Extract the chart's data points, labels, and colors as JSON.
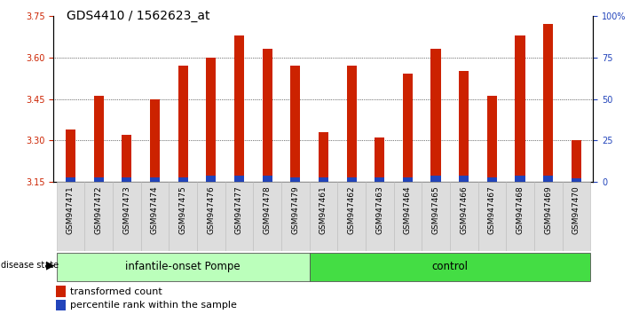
{
  "title": "GDS4410 / 1562623_at",
  "samples": [
    "GSM947471",
    "GSM947472",
    "GSM947473",
    "GSM947474",
    "GSM947475",
    "GSM947476",
    "GSM947477",
    "GSM947478",
    "GSM947479",
    "GSM947461",
    "GSM947462",
    "GSM947463",
    "GSM947464",
    "GSM947465",
    "GSM947466",
    "GSM947467",
    "GSM947468",
    "GSM947469",
    "GSM947470"
  ],
  "red_values": [
    3.34,
    3.46,
    3.32,
    3.45,
    3.57,
    3.6,
    3.68,
    3.63,
    3.57,
    3.33,
    3.57,
    3.31,
    3.54,
    3.63,
    3.55,
    3.46,
    3.68,
    3.72,
    3.3
  ],
  "blue_heights": [
    0.018,
    0.018,
    0.018,
    0.018,
    0.018,
    0.025,
    0.025,
    0.025,
    0.018,
    0.018,
    0.018,
    0.018,
    0.018,
    0.022,
    0.022,
    0.018,
    0.022,
    0.025,
    0.015
  ],
  "groups": [
    {
      "label": "infantile-onset Pompe",
      "start": 0,
      "end": 9,
      "color": "#AAFFAA"
    },
    {
      "label": "control",
      "start": 9,
      "end": 19,
      "color": "#44DD44"
    }
  ],
  "ylim_left": [
    3.15,
    3.75
  ],
  "ylim_right": [
    0,
    100
  ],
  "yticks_left": [
    3.15,
    3.3,
    3.45,
    3.6,
    3.75
  ],
  "yticks_right": [
    0,
    25,
    50,
    75,
    100
  ],
  "bar_color_red": "#CC2200",
  "bar_color_blue": "#2244BB",
  "bar_bottom": 3.15,
  "title_fontsize": 10,
  "tick_fontsize": 7,
  "bar_width": 0.35
}
